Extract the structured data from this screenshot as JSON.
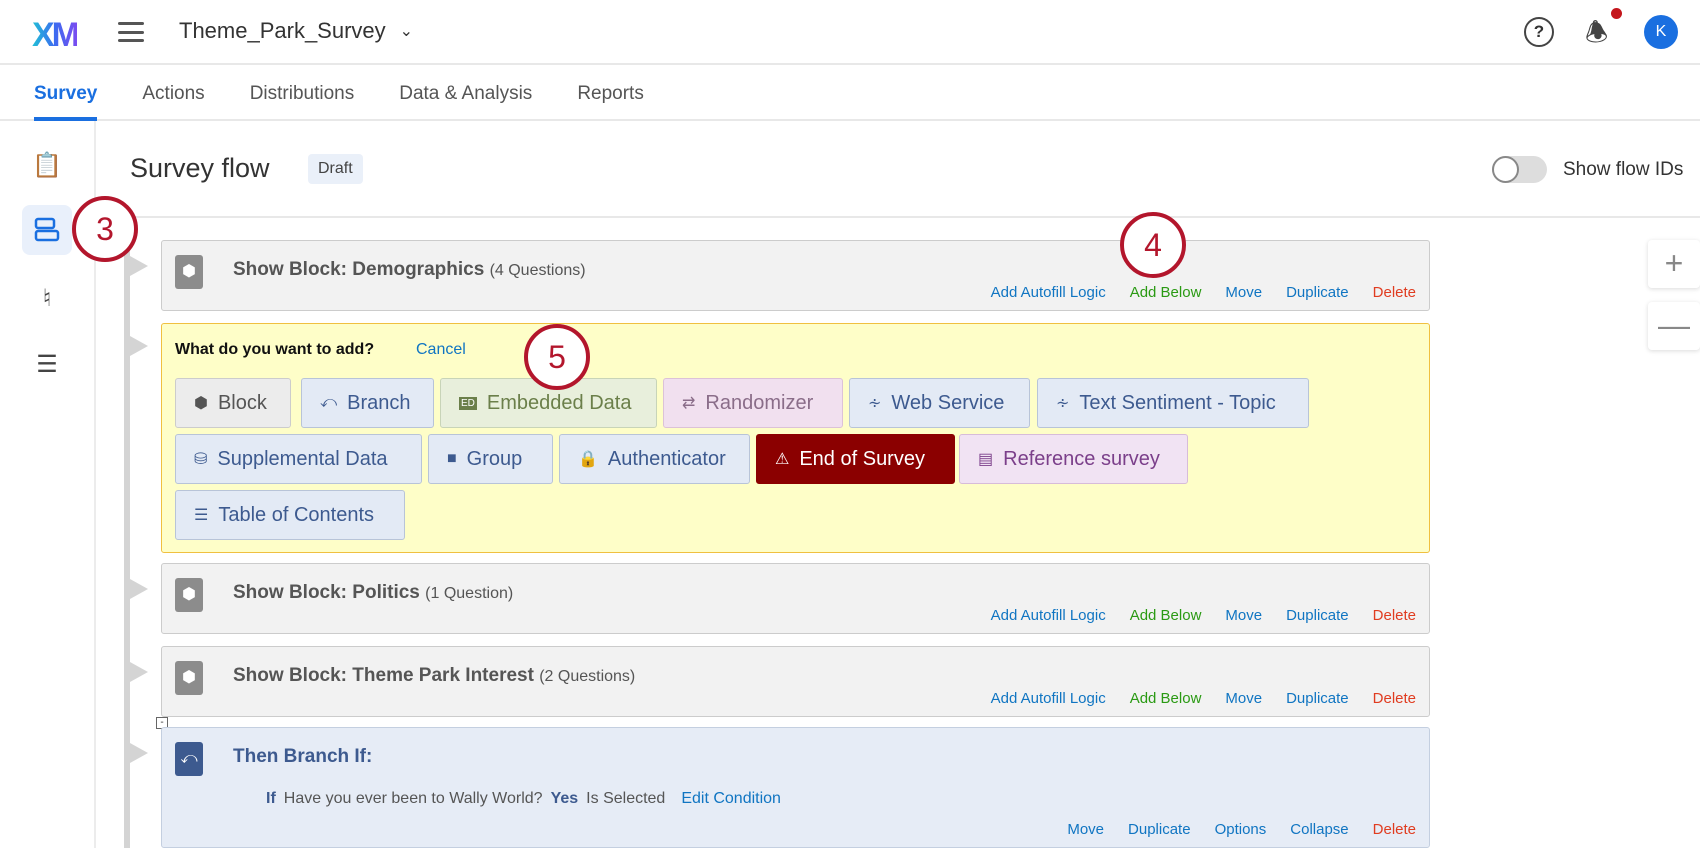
{
  "header": {
    "logo": "XM",
    "project": "Theme_Park_Survey",
    "help": "?",
    "avatar": "K"
  },
  "tabs": [
    "Survey",
    "Actions",
    "Distributions",
    "Data & Analysis",
    "Reports"
  ],
  "page": {
    "title": "Survey flow",
    "status": "Draft",
    "toggle_label": "Show flow IDs",
    "toggle_on": false
  },
  "blocks": [
    {
      "title": "Show Block: Demographics",
      "count": "(4 Questions)"
    },
    {
      "title": "Show Block: Politics",
      "count": "(1 Question)"
    },
    {
      "title": "Show Block: Theme Park Interest",
      "count": "(2 Questions)"
    }
  ],
  "block_actions": {
    "autofill": "Add Autofill Logic",
    "add_below": "Add Below",
    "move": "Move",
    "duplicate": "Duplicate",
    "delete": "Delete"
  },
  "add_panel": {
    "question": "What do you want to add?",
    "cancel": "Cancel",
    "options": [
      "Block",
      "Branch",
      "Embedded Data",
      "Randomizer",
      "Web Service",
      "Text Sentiment - Topic",
      "Supplemental Data",
      "Group",
      "Authenticator",
      "End of Survey",
      "Reference survey",
      "Table of Contents"
    ]
  },
  "branch": {
    "title": "Then Branch If:",
    "if": "If",
    "question": "Have you ever been to Wally World?",
    "answer": "Yes",
    "op": "Is Selected",
    "edit": "Edit Condition",
    "actions": {
      "move": "Move",
      "duplicate": "Duplicate",
      "options": "Options",
      "collapse": "Collapse",
      "delete": "Delete"
    }
  },
  "annotations": [
    "3",
    "4",
    "5"
  ],
  "zoom": {
    "in": "+",
    "out": "—"
  },
  "colors": {
    "accent": "#1a6fe0",
    "annotation": "#b3162c",
    "end_of_survey": "#8b0000",
    "panel": "#fefec8"
  }
}
